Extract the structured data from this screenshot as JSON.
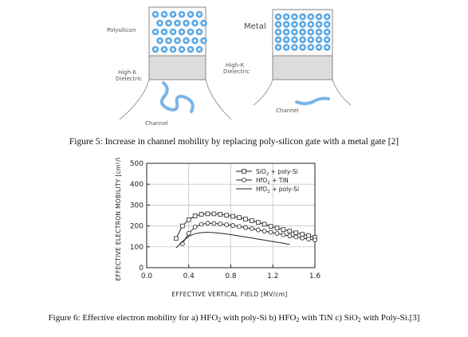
{
  "figure5": {
    "left_gate_label": "Polysilicon",
    "right_gate_label": "Metal",
    "left_dielectric_line1": "High-K",
    "left_dielectric_line2": "Dielectric",
    "right_dielectric_line1": "High-K",
    "right_dielectric_line2": "Dielectric",
    "left_channel_label": "Channel",
    "right_channel_label": "Channel",
    "caption": "Figure 5: Increase in channel mobility by replacing poly-silicon gate with a metal gate [2]"
  },
  "figure6": {
    "caption_parts": [
      "Figure 6: Effective electron mobility for a) HFO",
      "2",
      " with poly-Si b) HFO",
      "2",
      " with TiN c) SiO",
      "2",
      " with Poly-Si.[3]"
    ]
  },
  "chart_data": {
    "type": "line",
    "xlabel": "EFFECTIVE VERTICAL FIELD [MV/cm]",
    "ylabel": "EFFECTIVE ELECTRON MOBILITY [cm²/Vs]",
    "xlim": [
      0.0,
      1.6
    ],
    "ylim": [
      0,
      500
    ],
    "xticks": [
      "0.0",
      "0.4",
      "0.8",
      "1.2",
      "1.6"
    ],
    "yticks": [
      "0",
      "100",
      "200",
      "300",
      "400",
      "500"
    ],
    "legend_position": "top-right",
    "series": [
      {
        "name": "SiO2 + poly-Si",
        "marker": "square",
        "x": [
          0.28,
          0.34,
          0.4,
          0.46,
          0.52,
          0.58,
          0.64,
          0.7,
          0.76,
          0.82,
          0.88,
          0.94,
          1.0,
          1.06,
          1.12,
          1.18,
          1.24,
          1.3,
          1.36,
          1.42,
          1.48,
          1.54,
          1.6
        ],
        "y": [
          140,
          200,
          230,
          248,
          256,
          258,
          258,
          256,
          251,
          246,
          240,
          233,
          225,
          217,
          208,
          198,
          190,
          183,
          175,
          167,
          160,
          153,
          145
        ]
      },
      {
        "name": "HfO2 + TiN",
        "marker": "circle",
        "x": [
          0.34,
          0.4,
          0.46,
          0.52,
          0.58,
          0.64,
          0.7,
          0.76,
          0.82,
          0.88,
          0.94,
          1.0,
          1.06,
          1.12,
          1.18,
          1.24,
          1.3,
          1.36,
          1.42,
          1.48,
          1.54,
          1.6
        ],
        "y": [
          115,
          165,
          195,
          208,
          213,
          212,
          210,
          206,
          202,
          197,
          192,
          187,
          181,
          175,
          170,
          164,
          158,
          152,
          147,
          142,
          137,
          133
        ]
      },
      {
        "name": "HfO2 + poly-Si",
        "marker": "none",
        "x": [
          0.28,
          0.34,
          0.4,
          0.46,
          0.52,
          0.58,
          0.64,
          0.7,
          0.76,
          0.82,
          0.88,
          0.94,
          1.0,
          1.06,
          1.12,
          1.18,
          1.24,
          1.3,
          1.36
        ],
        "y": [
          95,
          125,
          150,
          163,
          168,
          170,
          168,
          165,
          161,
          157,
          152,
          147,
          142,
          137,
          132,
          127,
          122,
          117,
          112
        ]
      }
    ],
    "legend": [
      {
        "label_main": "SiO",
        "label_sub": "2",
        "label_rest": " + poly-Si"
      },
      {
        "label_main": "HfO",
        "label_sub": "2",
        "label_rest": " + TiN"
      },
      {
        "label_main": "HfO",
        "label_sub": "2",
        "label_rest": " + poly-Si"
      }
    ]
  }
}
